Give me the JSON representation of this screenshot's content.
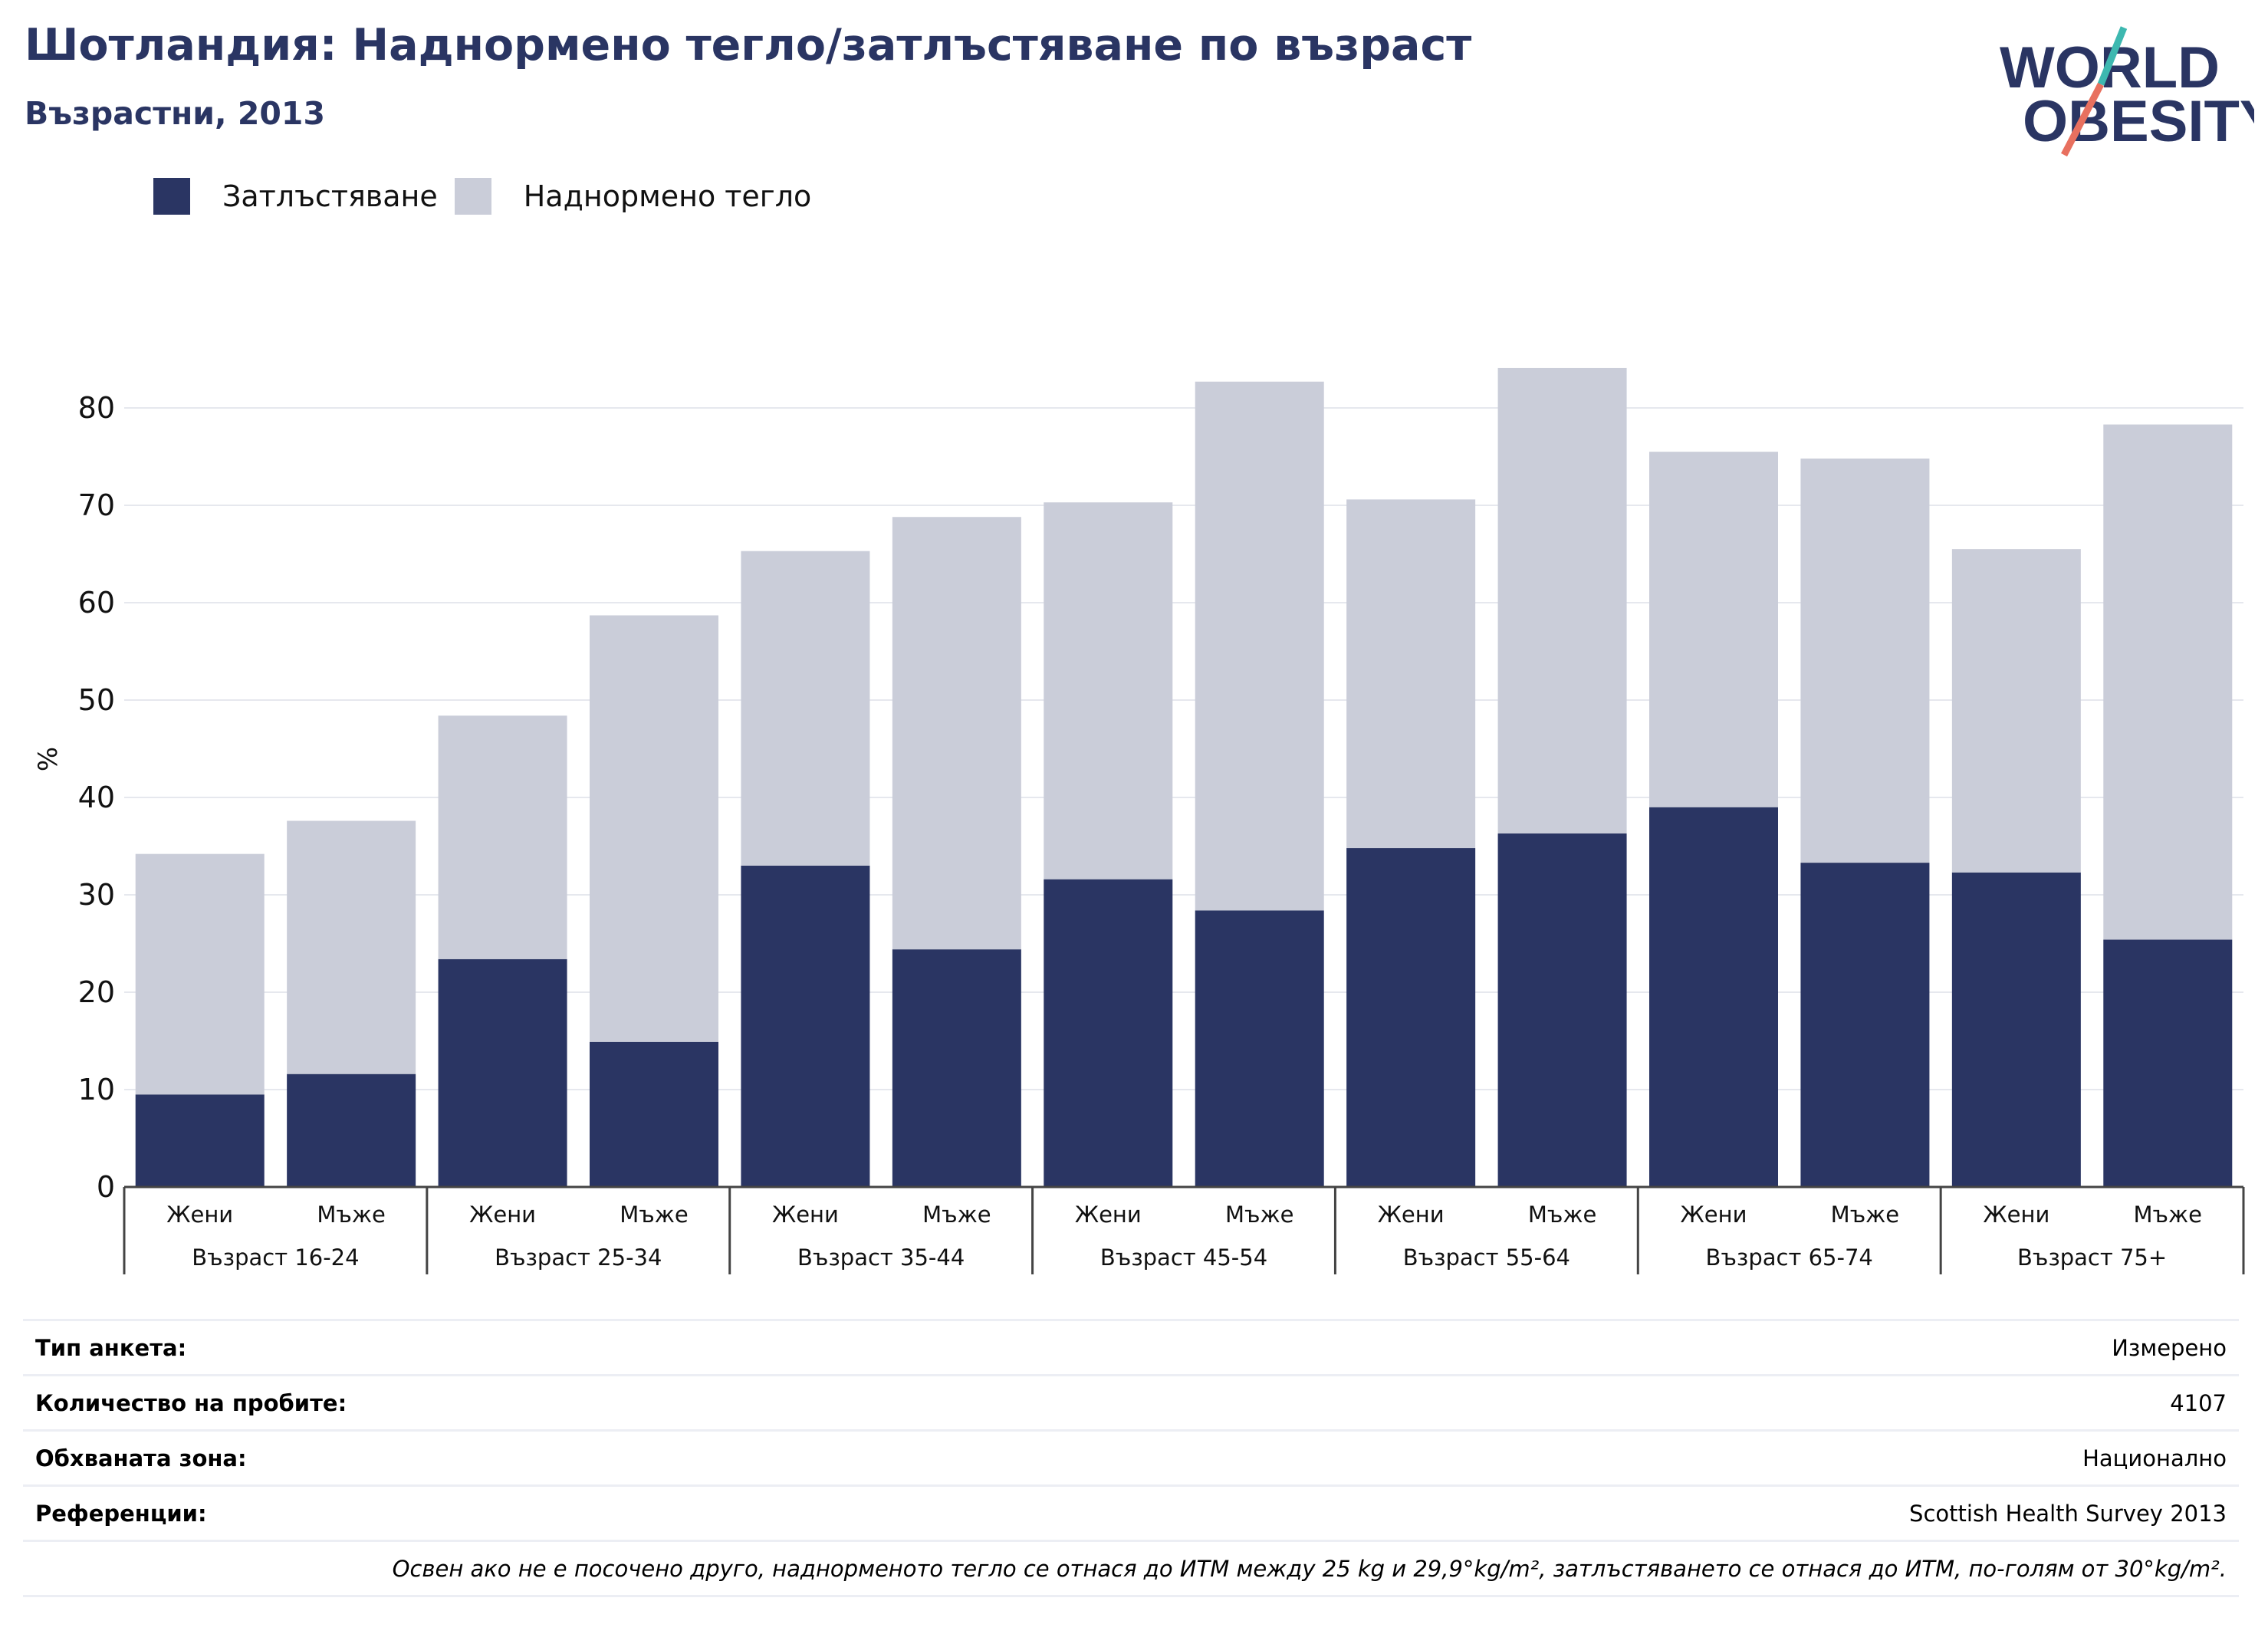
{
  "header": {
    "title": "Шотландия: Наднормено тегло/затлъстяване по възраст",
    "subtitle": "Възрастни, 2013"
  },
  "logo": {
    "line1": "WORLD",
    "line2": "OBESITY"
  },
  "legend": {
    "obesity_label": "Затлъстяване",
    "overweight_label": "Наднормено тегло"
  },
  "colors": {
    "obesity": "#2a3563",
    "overweight": "#cacdd9",
    "title": "#2a3563",
    "logo_teal": "#3db8b0",
    "logo_coral": "#e8705f"
  },
  "chart_data": {
    "type": "bar",
    "stacked": true,
    "ylabel": "%",
    "ylim": [
      0,
      85
    ],
    "yticks": [
      0,
      10,
      20,
      30,
      40,
      50,
      60,
      70,
      80
    ],
    "grid": true,
    "legend_position": "top-left",
    "groups": [
      "Възраст 16-24",
      "Възраст 25-34",
      "Възраст 35-44",
      "Възраст 45-54",
      "Възраст 55-64",
      "Възраст 65-74",
      "Възраст 75+"
    ],
    "subcategories": [
      "Жени",
      "Мъже"
    ],
    "series": [
      {
        "name": "Затлъстяване",
        "values": [
          9.5,
          11.6,
          23.4,
          14.9,
          33.0,
          24.4,
          31.6,
          28.4,
          34.8,
          36.3,
          39.0,
          33.3,
          32.3,
          25.4
        ]
      },
      {
        "name": "Наднормено тегло",
        "values": [
          24.7,
          26.0,
          25.0,
          43.8,
          32.3,
          44.4,
          38.7,
          54.3,
          35.8,
          47.8,
          36.5,
          41.5,
          33.2,
          52.9
        ]
      }
    ],
    "totals": [
      34.2,
      37.6,
      48.4,
      58.7,
      65.3,
      68.8,
      70.3,
      82.7,
      70.6,
      84.1,
      75.5,
      74.8,
      65.5,
      78.3
    ]
  },
  "info_table": {
    "rows": [
      {
        "label": "Тип анкета:",
        "value": "Измерено"
      },
      {
        "label": "Количество на пробите:",
        "value": "4107"
      },
      {
        "label": "Обхваната зона:",
        "value": "Национално"
      },
      {
        "label": "Референции:",
        "value": "Scottish Health Survey 2013"
      }
    ],
    "note": "Освен ако не е посочено друго, наднорменото тегло се отнася до ИТМ между 25 kg и 29,9°kg/m², затлъстяването се отнася до ИТМ, по-голям от 30°kg/m²."
  }
}
